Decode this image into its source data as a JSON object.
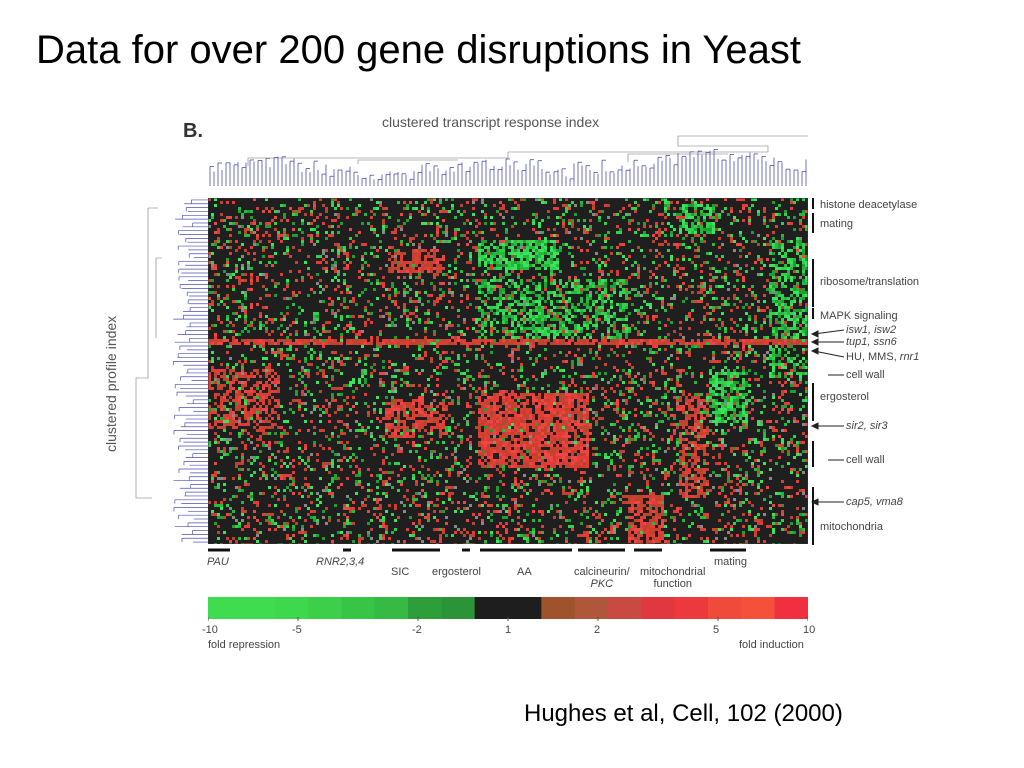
{
  "slide": {
    "title": "Data for over 200 gene disruptions in Yeast",
    "citation": "Hughes et al, Cell, 102 (2000)"
  },
  "figure": {
    "panel_label": "B.",
    "top_axis_label": "clustered transcript response index",
    "side_axis_label": "clustered profile index",
    "dendrogram_color": "#4a4fb0",
    "heatmap_background": "#1f1f1f",
    "right_labels": [
      {
        "text": "histone deacetylase",
        "italic": false
      },
      {
        "text": "mating",
        "italic": false
      },
      {
        "text": "ribosome/translation",
        "italic": false
      },
      {
        "text": "MAPK signaling",
        "italic": false
      },
      {
        "text": "isw1, isw2",
        "italic": true
      },
      {
        "text": "tup1, ssn6",
        "italic": true
      },
      {
        "text": "HU, MMS, ",
        "italic": false,
        "suffix": "rnr1"
      },
      {
        "text": "cell wall",
        "italic": false
      },
      {
        "text": "ergosterol",
        "italic": false
      },
      {
        "text": "sir2, sir3",
        "italic": true
      },
      {
        "text": "cell wall",
        "italic": false
      },
      {
        "text": "cap5, vma8",
        "italic": true
      },
      {
        "text": "mitochondria",
        "italic": false
      }
    ],
    "bottom_labels": [
      {
        "text": "PAU",
        "italic": true
      },
      {
        "text": "RNR2,3,4",
        "italic": true
      },
      {
        "text": "SIC",
        "italic": false
      },
      {
        "text": "ergosterol",
        "italic": false
      },
      {
        "text": "AA",
        "italic": false
      },
      {
        "line1": "calcineurin/",
        "line2": "PKC",
        "italic_line2": true
      },
      {
        "line1": "mitochondrial",
        "line2": "function"
      },
      {
        "text": "mating",
        "italic": false
      }
    ]
  },
  "legend": {
    "colors": [
      "#3fdc4f",
      "#3fdc4f",
      "#3ed84d",
      "#3cd04a",
      "#38c446",
      "#35bb43",
      "#2e9e3a",
      "#2b9437",
      "#1e1e1e",
      "#1e1e1e",
      "#a0522d",
      "#b0563a",
      "#c94a40",
      "#e0383e",
      "#ec3a3c",
      "#f04a3a",
      "#f4503a",
      "#f0303e"
    ],
    "tick_labels": [
      "-10",
      "-5",
      "-2",
      "1",
      "2",
      "5",
      "10"
    ],
    "left_note": "fold repression",
    "right_note": "fold induction"
  }
}
